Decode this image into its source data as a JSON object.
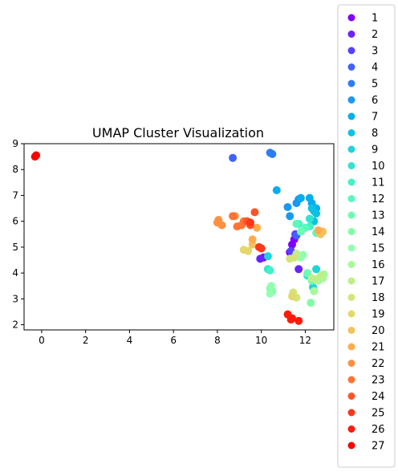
{
  "chart_data": {
    "type": "scatter",
    "title": "UMAP Cluster Visualization",
    "xlabel": "",
    "ylabel": "",
    "xlim": [
      -0.8,
      13.3
    ],
    "ylim": [
      1.8,
      9.0
    ],
    "x_ticks": [
      "0",
      "2",
      "4",
      "6",
      "8",
      "10",
      "12"
    ],
    "y_ticks": [
      "2",
      "3",
      "4",
      "5",
      "6",
      "7",
      "8",
      "9"
    ],
    "x_tick_values": [
      0,
      2,
      4,
      6,
      8,
      10,
      12
    ],
    "y_tick_values": [
      2,
      3,
      4,
      5,
      6,
      7,
      8,
      9
    ],
    "grid": false,
    "legend": {
      "placement": "outside-right",
      "entries": [
        "1",
        "2",
        "3",
        "4",
        "5",
        "6",
        "7",
        "8",
        "9",
        "10",
        "11",
        "12",
        "13",
        "14",
        "15",
        "16",
        "17",
        "18",
        "19",
        "20",
        "21",
        "22",
        "23",
        "24",
        "25",
        "26",
        "27"
      ]
    },
    "colors": {
      "1": "#8000ff",
      "2": "#6a22fe",
      "3": "#5641fd",
      "4": "#4262fb",
      "5": "#2c7ef7",
      "6": "#1a98f1",
      "7": "#06aeed",
      "8": "#0cc3e3",
      "9": "#1dd5db",
      "10": "#2ee5d2",
      "11": "#44f1c7",
      "12": "#58f9bc",
      "13": "#6cfeb0",
      "14": "#80ffa4",
      "15": "#94feb0",
      "16": "#a8f99b",
      "17": "#bef08a",
      "18": "#d2e57b",
      "19": "#e4d86c",
      "20": "#f4c25d",
      "21": "#ffac4e",
      "22": "#ff9140",
      "23": "#ff7432",
      "24": "#ff5425",
      "25": "#ff3618",
      "26": "#ff1a0b",
      "27": "#ff0000"
    },
    "series": [
      {
        "name": "1",
        "points": [
          [
            11.5,
            5.3
          ],
          [
            11.4,
            5.1
          ],
          [
            11.3,
            4.8
          ],
          [
            10.1,
            4.6
          ]
        ]
      },
      {
        "name": "2",
        "points": [
          [
            11.7,
            4.15
          ],
          [
            9.95,
            4.55
          ]
        ]
      },
      {
        "name": "3",
        "points": [
          [
            11.35,
            4.85
          ],
          [
            11.55,
            5.5
          ]
        ]
      },
      {
        "name": "4",
        "points": [
          [
            8.7,
            8.45
          ],
          [
            11.6,
            5.45
          ]
        ]
      },
      {
        "name": "5",
        "points": [
          [
            10.4,
            8.65
          ],
          [
            10.5,
            8.6
          ]
        ]
      },
      {
        "name": "6",
        "points": [
          [
            11.2,
            6.55
          ],
          [
            11.3,
            6.2
          ],
          [
            11.6,
            6.7
          ],
          [
            11.7,
            6.85
          ]
        ]
      },
      {
        "name": "7",
        "points": [
          [
            10.7,
            7.2
          ],
          [
            11.8,
            6.9
          ],
          [
            12.2,
            6.9
          ],
          [
            12.3,
            6.7
          ],
          [
            12.5,
            6.5
          ],
          [
            12.4,
            6.4
          ]
        ]
      },
      {
        "name": "8",
        "points": [
          [
            12.4,
            6.0
          ],
          [
            12.5,
            6.3
          ],
          [
            12.3,
            6.5
          ]
        ]
      },
      {
        "name": "9",
        "points": [
          [
            10.3,
            4.65
          ],
          [
            12.5,
            4.15
          ],
          [
            12.35,
            3.45
          ]
        ]
      },
      {
        "name": "10",
        "points": [
          [
            12.2,
            6.1
          ],
          [
            12.1,
            3.9
          ],
          [
            10.3,
            4.15
          ]
        ]
      },
      {
        "name": "11",
        "points": [
          [
            10.4,
            4.1
          ],
          [
            11.7,
            5.9
          ],
          [
            12.2,
            5.8
          ]
        ]
      },
      {
        "name": "12",
        "points": [
          [
            11.6,
            5.9
          ],
          [
            12.0,
            5.75
          ],
          [
            12.5,
            5.55
          ]
        ]
      },
      {
        "name": "13",
        "points": [
          [
            11.8,
            5.6
          ],
          [
            12.1,
            4.0
          ],
          [
            12.3,
            3.7
          ]
        ]
      },
      {
        "name": "14",
        "points": [
          [
            12.25,
            2.85
          ],
          [
            10.4,
            3.4
          ],
          [
            10.5,
            3.3
          ]
        ]
      },
      {
        "name": "15",
        "points": [
          [
            10.4,
            3.2
          ],
          [
            10.45,
            3.5
          ],
          [
            11.8,
            4.6
          ],
          [
            11.9,
            4.7
          ]
        ]
      },
      {
        "name": "16",
        "points": [
          [
            12.4,
            3.3
          ],
          [
            12.6,
            3.7
          ],
          [
            12.8,
            3.8
          ],
          [
            12.85,
            3.95
          ]
        ]
      },
      {
        "name": "17",
        "points": [
          [
            12.3,
            3.8
          ],
          [
            12.5,
            3.75
          ],
          [
            12.7,
            3.9
          ],
          [
            11.6,
            4.75
          ]
        ]
      },
      {
        "name": "18",
        "points": [
          [
            11.3,
            4.55
          ],
          [
            11.5,
            4.6
          ],
          [
            11.6,
            3.05
          ],
          [
            11.45,
            3.25
          ]
        ]
      },
      {
        "name": "19",
        "points": [
          [
            9.2,
            4.9
          ],
          [
            9.4,
            4.85
          ],
          [
            11.4,
            3.1
          ]
        ]
      },
      {
        "name": "20",
        "points": [
          [
            9.6,
            5.1
          ],
          [
            12.6,
            5.6
          ],
          [
            12.8,
            5.6
          ],
          [
            12.7,
            5.5
          ]
        ]
      },
      {
        "name": "21",
        "points": [
          [
            9.6,
            5.3
          ],
          [
            9.8,
            5.75
          ],
          [
            12.6,
            5.65
          ]
        ]
      },
      {
        "name": "22",
        "points": [
          [
            8.0,
            5.95
          ],
          [
            8.05,
            6.05
          ],
          [
            8.2,
            5.85
          ],
          [
            8.8,
            6.2
          ]
        ]
      },
      {
        "name": "23",
        "points": [
          [
            8.7,
            6.2
          ],
          [
            8.9,
            5.8
          ],
          [
            9.1,
            5.85
          ],
          [
            9.2,
            6.0
          ]
        ]
      },
      {
        "name": "24",
        "points": [
          [
            9.7,
            6.35
          ],
          [
            9.5,
            5.85
          ],
          [
            9.35,
            6.0
          ]
        ]
      },
      {
        "name": "25",
        "points": [
          [
            9.5,
            5.95
          ],
          [
            10.0,
            4.95
          ],
          [
            9.9,
            5.0
          ]
        ]
      },
      {
        "name": "26",
        "points": [
          [
            11.2,
            2.4
          ],
          [
            11.35,
            2.2
          ],
          [
            11.4,
            2.25
          ],
          [
            11.7,
            2.15
          ]
        ]
      },
      {
        "name": "27",
        "points": [
          [
            -0.3,
            8.5
          ],
          [
            -0.25,
            8.55
          ]
        ]
      }
    ]
  }
}
